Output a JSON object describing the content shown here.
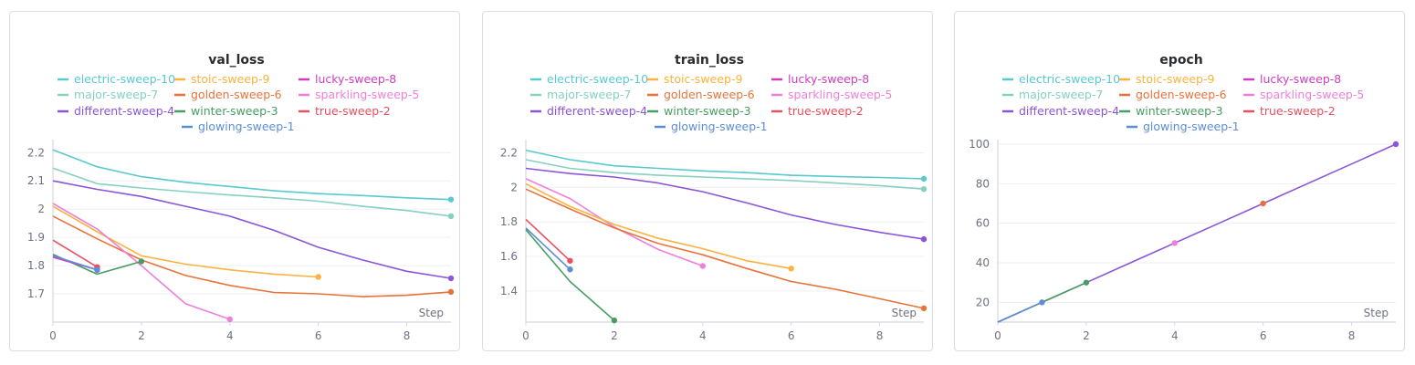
{
  "legend": [
    [
      "electric-sweep-10",
      "stoic-sweep-9",
      "lucky-sweep-8"
    ],
    [
      "major-sweep-7",
      "golden-sweep-6",
      "sparkling-sweep-5"
    ],
    [
      "different-sweep-4",
      "winter-sweep-3",
      "true-sweep-2"
    ],
    [
      "glowing-sweep-1"
    ]
  ],
  "colors": {
    "electric-sweep-10": "#58c9cf",
    "stoic-sweep-9": "#fbb23e",
    "lucky-sweep-8": "#d13dc2",
    "major-sweep-7": "#86d0c0",
    "golden-sweep-6": "#e8733a",
    "sparkling-sweep-5": "#ee7fdb",
    "different-sweep-4": "#8a55d9",
    "winter-sweep-3": "#479d62",
    "true-sweep-2": "#e85060",
    "glowing-sweep-1": "#5b8ed8"
  },
  "chart_data": [
    {
      "type": "line",
      "title": "val_loss",
      "xlabel": "Step",
      "ylabel": "",
      "xlim": [
        0,
        9
      ],
      "ylim": [
        1.6,
        2.23
      ],
      "xticks": [
        0,
        2,
        4,
        6,
        8
      ],
      "yticks": [
        1.7,
        1.8,
        1.9,
        2,
        2.1,
        2.2
      ],
      "ytick_labels": [
        "1.7",
        "1.8",
        "1.9",
        "2",
        "2.1",
        "2.2"
      ],
      "series": [
        {
          "name": "electric-sweep-10",
          "x": [
            0,
            1,
            2,
            3,
            4,
            5,
            6,
            7,
            8,
            9
          ],
          "y": [
            2.21,
            2.15,
            2.115,
            2.095,
            2.08,
            2.065,
            2.055,
            2.048,
            2.04,
            2.034
          ]
        },
        {
          "name": "major-sweep-7",
          "x": [
            0,
            1,
            2,
            3,
            4,
            5,
            6,
            7,
            8,
            9
          ],
          "y": [
            2.145,
            2.09,
            2.075,
            2.062,
            2.05,
            2.04,
            2.028,
            2.01,
            1.995,
            1.975
          ]
        },
        {
          "name": "different-sweep-4",
          "x": [
            0,
            1,
            2,
            3,
            4,
            5,
            6,
            7,
            8,
            9
          ],
          "y": [
            2.1,
            2.07,
            2.045,
            2.01,
            1.975,
            1.925,
            1.865,
            1.82,
            1.78,
            1.755
          ]
        },
        {
          "name": "stoic-sweep-9",
          "x": [
            0,
            1,
            2,
            3,
            4,
            5,
            6
          ],
          "y": [
            2.01,
            1.92,
            1.835,
            1.805,
            1.785,
            1.77,
            1.76
          ]
        },
        {
          "name": "golden-sweep-6",
          "x": [
            0,
            1,
            2,
            3,
            4,
            5,
            6,
            7,
            8,
            9
          ],
          "y": [
            1.975,
            1.895,
            1.82,
            1.765,
            1.73,
            1.705,
            1.7,
            1.69,
            1.695,
            1.707
          ]
        },
        {
          "name": "sparkling-sweep-5",
          "x": [
            0,
            1,
            2,
            3,
            4
          ],
          "y": [
            2.02,
            1.93,
            1.8,
            1.665,
            1.61
          ]
        },
        {
          "name": "true-sweep-2",
          "x": [
            0,
            1
          ],
          "y": [
            1.89,
            1.795
          ]
        },
        {
          "name": "winter-sweep-3",
          "x": [
            0,
            1,
            2
          ],
          "y": [
            1.84,
            1.77,
            1.815
          ]
        },
        {
          "name": "lucky-sweep-8",
          "x": [
            0,
            1
          ],
          "y": [
            1.83,
            1.785
          ]
        },
        {
          "name": "glowing-sweep-1",
          "x": [
            0,
            1
          ],
          "y": [
            1.835,
            1.785
          ]
        }
      ]
    },
    {
      "type": "line",
      "title": "train_loss",
      "xlabel": "Step",
      "ylabel": "",
      "xlim": [
        0,
        9
      ],
      "ylim": [
        1.22,
        2.25
      ],
      "xticks": [
        0,
        2,
        4,
        6,
        8
      ],
      "yticks": [
        1.4,
        1.6,
        1.8,
        2,
        2.2
      ],
      "ytick_labels": [
        "1.4",
        "1.6",
        "1.8",
        "2",
        "2.2"
      ],
      "series": [
        {
          "name": "electric-sweep-10",
          "x": [
            0,
            1,
            2,
            3,
            4,
            5,
            6,
            7,
            8,
            9
          ],
          "y": [
            2.215,
            2.16,
            2.125,
            2.11,
            2.095,
            2.085,
            2.07,
            2.063,
            2.057,
            2.05
          ]
        },
        {
          "name": "major-sweep-7",
          "x": [
            0,
            1,
            2,
            3,
            4,
            5,
            6,
            7,
            8,
            9
          ],
          "y": [
            2.16,
            2.11,
            2.085,
            2.07,
            2.06,
            2.05,
            2.04,
            2.025,
            2.01,
            1.99
          ]
        },
        {
          "name": "different-sweep-4",
          "x": [
            0,
            1,
            2,
            3,
            4,
            5,
            6,
            7,
            8,
            9
          ],
          "y": [
            2.11,
            2.08,
            2.06,
            2.025,
            1.975,
            1.91,
            1.84,
            1.785,
            1.74,
            1.7
          ]
        },
        {
          "name": "sparkling-sweep-5",
          "x": [
            0,
            1,
            2,
            3,
            4
          ],
          "y": [
            2.05,
            1.935,
            1.77,
            1.64,
            1.545
          ]
        },
        {
          "name": "stoic-sweep-9",
          "x": [
            0,
            1,
            2,
            3,
            4,
            5,
            6
          ],
          "y": [
            2.02,
            1.89,
            1.785,
            1.705,
            1.645,
            1.575,
            1.53
          ]
        },
        {
          "name": "golden-sweep-6",
          "x": [
            0,
            1,
            2,
            3,
            4,
            5,
            6,
            7,
            8,
            9
          ],
          "y": [
            1.99,
            1.875,
            1.765,
            1.675,
            1.61,
            1.53,
            1.455,
            1.41,
            1.355,
            1.3
          ]
        },
        {
          "name": "true-sweep-2",
          "x": [
            0,
            1
          ],
          "y": [
            1.815,
            1.575
          ]
        },
        {
          "name": "glowing-sweep-1",
          "x": [
            0,
            1
          ],
          "y": [
            1.765,
            1.525
          ]
        },
        {
          "name": "winter-sweep-3",
          "x": [
            0,
            1,
            2
          ],
          "y": [
            1.755,
            1.455,
            1.23
          ]
        }
      ]
    },
    {
      "type": "line",
      "title": "epoch",
      "xlabel": "Step",
      "ylabel": "",
      "xlim": [
        0,
        9
      ],
      "ylim": [
        10,
        100
      ],
      "xticks": [
        0,
        2,
        4,
        6,
        8
      ],
      "yticks": [
        20,
        40,
        60,
        80,
        100
      ],
      "ytick_labels": [
        "20",
        "40",
        "60",
        "80",
        "100"
      ],
      "series": [
        {
          "name": "different-sweep-4",
          "x": [
            0,
            1,
            2,
            3,
            4,
            5,
            6,
            7,
            8,
            9
          ],
          "y": [
            10,
            20,
            30,
            40,
            50,
            60,
            70,
            80,
            90,
            100
          ]
        },
        {
          "name": "golden-sweep-6",
          "x": [
            6
          ],
          "y": [
            70
          ]
        },
        {
          "name": "sparkling-sweep-5",
          "x": [
            4
          ],
          "y": [
            50
          ]
        },
        {
          "name": "winter-sweep-3",
          "x": [
            0,
            1,
            2
          ],
          "y": [
            10,
            20,
            30
          ]
        },
        {
          "name": "glowing-sweep-1",
          "x": [
            0,
            1
          ],
          "y": [
            10,
            20
          ]
        }
      ]
    }
  ]
}
